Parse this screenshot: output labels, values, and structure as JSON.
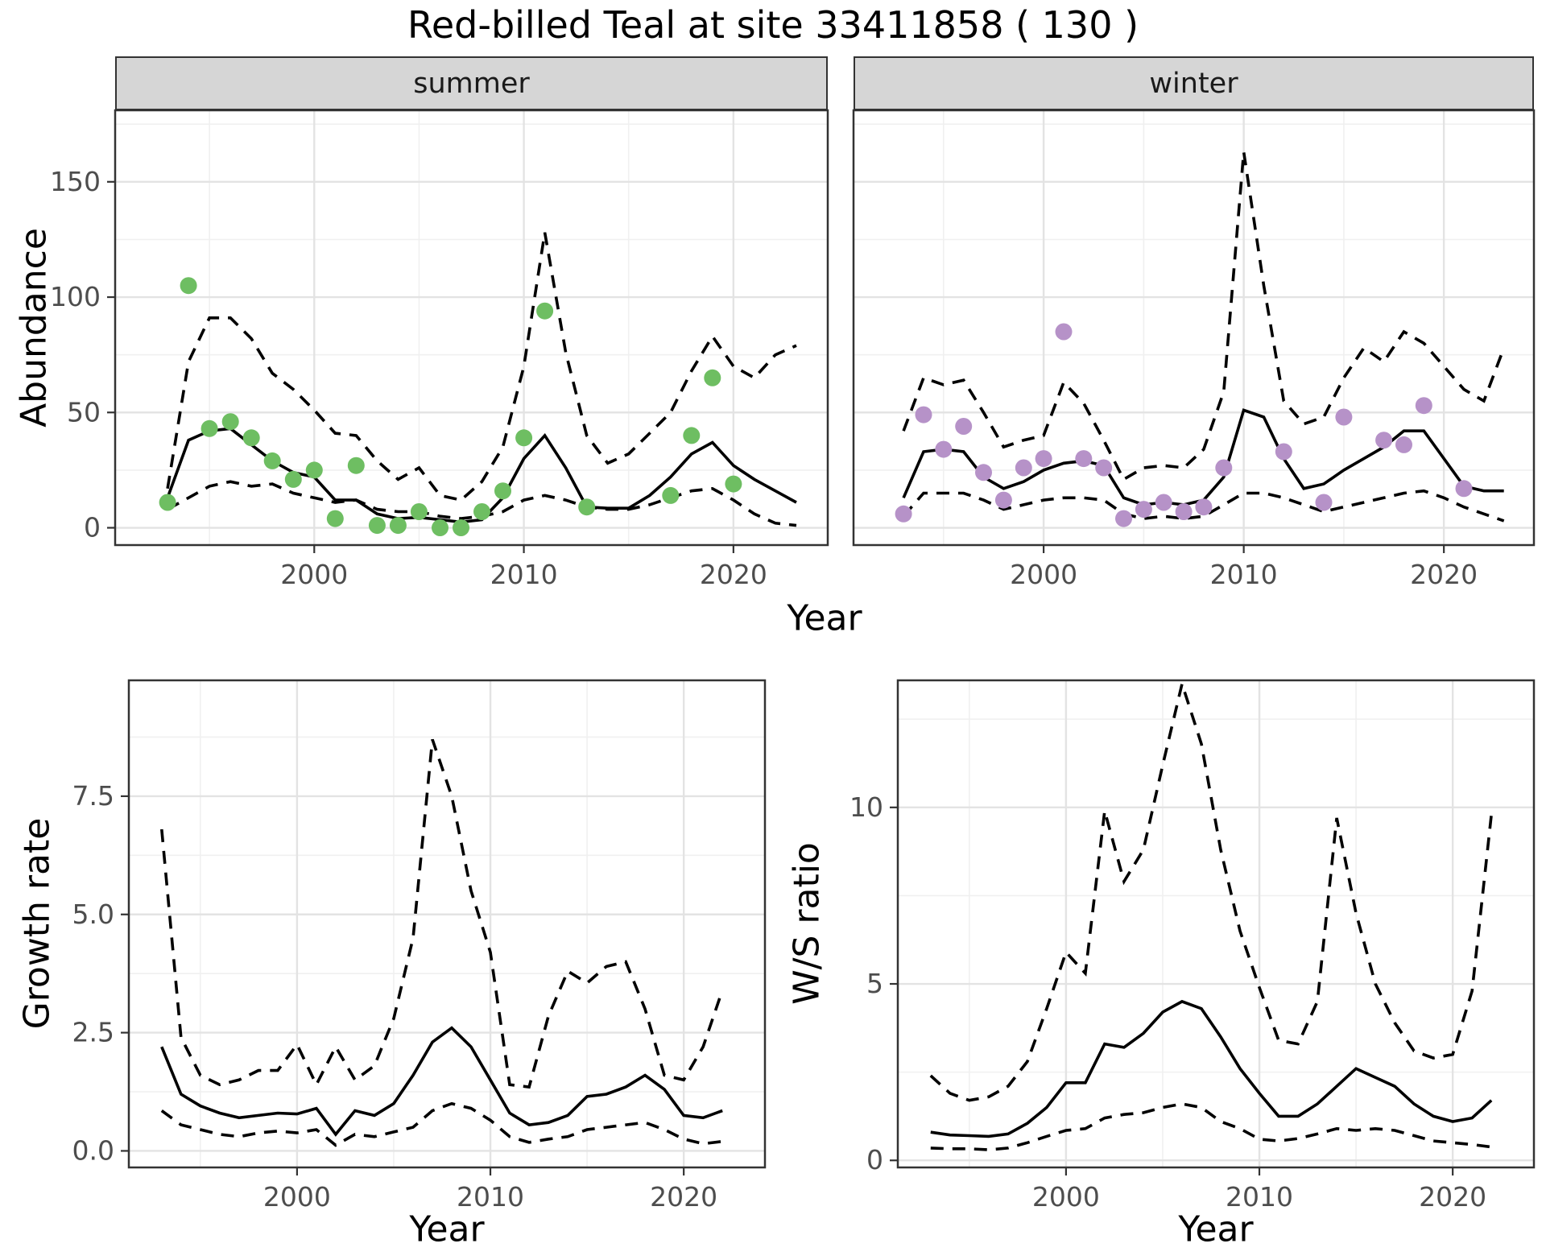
{
  "title": "Red-billed Teal at site 33411858 ( 130 )",
  "facets": {
    "summer": "summer",
    "winter": "winter"
  },
  "axis_labels": {
    "abundance": "Abundance",
    "year": "Year",
    "growth": "Growth rate",
    "ws": "W/S ratio"
  },
  "colors": {
    "summer_points": "#6ebe62",
    "winter_points": "#b692c8",
    "line": "#000000",
    "grid_major": "#e3e3e3",
    "grid_minor": "#f0f0f0",
    "strip_bg": "#d6d6d6",
    "panel_border": "#333333",
    "tick_label": "#4d4d4d"
  },
  "chart_data": [
    {
      "id": "abundance-summer",
      "type": "line",
      "facet": "summer",
      "xlabel": "Year",
      "ylabel": "Abundance",
      "xlim": [
        1990.5,
        2024.5
      ],
      "ylim": [
        -7.5,
        181
      ],
      "xticks": [
        2000,
        2010,
        2020
      ],
      "xtick_labels": [
        "2000",
        "2010",
        "2020"
      ],
      "xminor": [
        1995,
        2005,
        2015
      ],
      "yticks": [
        0,
        50,
        100,
        150
      ],
      "ytick_labels": [
        "0",
        "50",
        "100",
        "150"
      ],
      "yminor": [
        25,
        75,
        125,
        175
      ],
      "years": [
        1993,
        1994,
        1995,
        1996,
        1997,
        1998,
        1999,
        2000,
        2001,
        2002,
        2003,
        2004,
        2005,
        2006,
        2007,
        2008,
        2009,
        2010,
        2011,
        2012,
        2013,
        2014,
        2015,
        2016,
        2017,
        2018,
        2019,
        2020,
        2021,
        2022,
        2023
      ],
      "series": [
        {
          "name": "mean",
          "style": "solid",
          "values": [
            13,
            38,
            42,
            43,
            36,
            29,
            24,
            22,
            12,
            12,
            6,
            4,
            4.5,
            3.5,
            2.5,
            3.5,
            13,
            30,
            40,
            26,
            9,
            8.5,
            8.5,
            14,
            22,
            32,
            37,
            27,
            21,
            16,
            11
          ]
        },
        {
          "name": "upper_ci",
          "style": "dashed",
          "values": [
            17,
            72,
            91,
            91,
            82,
            67,
            60,
            51,
            41,
            40,
            29,
            21,
            26,
            14,
            12,
            20,
            35,
            70,
            128,
            76,
            40,
            28,
            32,
            41,
            50,
            68,
            83,
            70,
            65,
            75,
            79
          ]
        },
        {
          "name": "lower_ci",
          "style": "dashed",
          "values": [
            8,
            13,
            18,
            20,
            18,
            19,
            15,
            13,
            11,
            12,
            8,
            7,
            7,
            5,
            4,
            5,
            7,
            12,
            14,
            12,
            9,
            8,
            8,
            10,
            13,
            16,
            17,
            12,
            6,
            2,
            1
          ]
        }
      ],
      "points": {
        "name": "observed-summer",
        "color": "#6ebe62",
        "years": [
          1993,
          1994,
          1995,
          1996,
          1997,
          1998,
          1999,
          2000,
          2001,
          2002,
          2003,
          2004,
          2005,
          2006,
          2007,
          2008,
          2009,
          2010,
          2011,
          2013,
          2017,
          2018,
          2019,
          2020
        ],
        "values": [
          11,
          105,
          43,
          46,
          39,
          29,
          21,
          25,
          4,
          27,
          1,
          1,
          7,
          0,
          0,
          7,
          16,
          39,
          94,
          9,
          14,
          40,
          65,
          19
        ]
      }
    },
    {
      "id": "abundance-winter",
      "type": "line",
      "facet": "winter",
      "xlabel": "Year",
      "ylabel": "Abundance",
      "xlim": [
        1990.5,
        2024.5
      ],
      "ylim": [
        -7.5,
        181
      ],
      "xticks": [
        2000,
        2010,
        2020
      ],
      "xtick_labels": [
        "2000",
        "2010",
        "2020"
      ],
      "xminor": [
        1995,
        2005,
        2015
      ],
      "yticks": [
        0,
        50,
        100,
        150
      ],
      "ytick_labels": [
        "0",
        "50",
        "100",
        "150"
      ],
      "yminor": [
        25,
        75,
        125,
        175
      ],
      "years": [
        1993,
        1994,
        1995,
        1996,
        1997,
        1998,
        1999,
        2000,
        2001,
        2002,
        2003,
        2004,
        2005,
        2006,
        2007,
        2008,
        2009,
        2010,
        2011,
        2012,
        2013,
        2014,
        2015,
        2016,
        2017,
        2018,
        2019,
        2020,
        2021,
        2022,
        2023
      ],
      "series": [
        {
          "name": "mean",
          "style": "solid",
          "values": [
            13,
            33,
            34,
            33,
            22,
            17,
            20,
            25,
            28,
            29,
            27,
            13,
            10,
            11,
            10,
            12,
            22,
            51,
            48,
            30,
            17,
            19,
            25,
            30,
            35,
            42,
            42,
            30,
            18,
            16,
            16
          ]
        },
        {
          "name": "upper_ci",
          "style": "dashed",
          "values": [
            42,
            65,
            62,
            64,
            50,
            35,
            38,
            40,
            63,
            54,
            38,
            21,
            26,
            27,
            26,
            34,
            59,
            163,
            105,
            55,
            45,
            48,
            65,
            78,
            72,
            85,
            80,
            70,
            60,
            55,
            78
          ]
        },
        {
          "name": "lower_ci",
          "style": "dashed",
          "values": [
            5,
            15,
            15,
            15,
            12,
            8,
            10,
            12,
            13,
            13,
            12,
            6,
            4,
            5,
            4,
            5,
            10,
            15,
            15,
            13,
            10,
            7,
            9,
            11,
            13,
            15,
            16,
            13,
            9,
            6,
            3
          ]
        }
      ],
      "points": {
        "name": "observed-winter",
        "color": "#b692c8",
        "years": [
          1993,
          1994,
          1995,
          1996,
          1997,
          1998,
          1999,
          2000,
          2001,
          2002,
          2003,
          2004,
          2005,
          2006,
          2007,
          2008,
          2009,
          2012,
          2014,
          2015,
          2017,
          2018,
          2019,
          2021
        ],
        "values": [
          6,
          49,
          34,
          44,
          24,
          12,
          26,
          30,
          85,
          30,
          26,
          4,
          8,
          11,
          7,
          9,
          26,
          33,
          11,
          48,
          38,
          36,
          53,
          17
        ]
      }
    },
    {
      "id": "growth-rate",
      "type": "line",
      "xlabel": "Year",
      "ylabel": "Growth rate",
      "xlim": [
        1991.3,
        2024.2
      ],
      "ylim": [
        -0.35,
        9.95
      ],
      "xticks": [
        2000,
        2010,
        2020
      ],
      "xtick_labels": [
        "2000",
        "2010",
        "2020"
      ],
      "xminor": [
        1995,
        2005,
        2015
      ],
      "yticks": [
        0,
        2.5,
        5,
        7.5
      ],
      "ytick_labels": [
        "0.0",
        "2.5",
        "5.0",
        "7.5"
      ],
      "yminor": [
        1.25,
        3.75,
        6.25,
        8.75
      ],
      "years": [
        1993,
        1994,
        1995,
        1996,
        1997,
        1998,
        1999,
        2000,
        2001,
        2002,
        2003,
        2004,
        2005,
        2006,
        2007,
        2008,
        2009,
        2010,
        2011,
        2012,
        2013,
        2014,
        2015,
        2016,
        2017,
        2018,
        2019,
        2020,
        2021,
        2022
      ],
      "series": [
        {
          "name": "mean",
          "style": "solid",
          "values": [
            2.2,
            1.2,
            0.95,
            0.8,
            0.7,
            0.75,
            0.8,
            0.78,
            0.9,
            0.35,
            0.85,
            0.75,
            1.0,
            1.6,
            2.3,
            2.6,
            2.2,
            1.5,
            0.8,
            0.55,
            0.6,
            0.75,
            1.15,
            1.2,
            1.35,
            1.6,
            1.3,
            0.75,
            0.7,
            0.85
          ]
        },
        {
          "name": "upper_ci",
          "style": "dashed",
          "values": [
            6.8,
            2.4,
            1.6,
            1.4,
            1.5,
            1.7,
            1.7,
            2.25,
            1.4,
            2.2,
            1.5,
            1.8,
            2.8,
            4.5,
            8.7,
            7.5,
            5.5,
            4.2,
            1.4,
            1.35,
            2.85,
            3.8,
            3.55,
            3.9,
            4.0,
            3.0,
            1.6,
            1.5,
            2.2,
            3.4
          ]
        },
        {
          "name": "lower_ci",
          "style": "dashed",
          "values": [
            0.85,
            0.55,
            0.45,
            0.35,
            0.3,
            0.38,
            0.42,
            0.38,
            0.45,
            0.12,
            0.35,
            0.3,
            0.4,
            0.5,
            0.85,
            1.0,
            0.9,
            0.65,
            0.3,
            0.18,
            0.25,
            0.3,
            0.45,
            0.5,
            0.55,
            0.6,
            0.45,
            0.25,
            0.15,
            0.2
          ]
        }
      ]
    },
    {
      "id": "ws-ratio",
      "type": "line",
      "xlabel": "Year",
      "ylabel": "W/S ratio",
      "xlim": [
        1991.3,
        2024.2
      ],
      "ylim": [
        -0.2,
        13.6
      ],
      "xticks": [
        2000,
        2010,
        2020
      ],
      "xtick_labels": [
        "2000",
        "2010",
        "2020"
      ],
      "xminor": [
        1995,
        2005,
        2015
      ],
      "yticks": [
        0,
        5,
        10
      ],
      "ytick_labels": [
        "0",
        "5",
        "10"
      ],
      "yminor": [
        2.5,
        7.5,
        12.5
      ],
      "years": [
        1993,
        1994,
        1995,
        1996,
        1997,
        1998,
        1999,
        2000,
        2001,
        2002,
        2003,
        2004,
        2005,
        2006,
        2007,
        2008,
        2009,
        2010,
        2011,
        2012,
        2013,
        2014,
        2015,
        2016,
        2017,
        2018,
        2019,
        2020,
        2021,
        2022
      ],
      "series": [
        {
          "name": "mean",
          "style": "solid",
          "values": [
            0.8,
            0.72,
            0.7,
            0.68,
            0.75,
            1.05,
            1.5,
            2.2,
            2.2,
            3.3,
            3.2,
            3.6,
            4.2,
            4.5,
            4.3,
            3.5,
            2.6,
            1.9,
            1.25,
            1.25,
            1.6,
            2.1,
            2.6,
            2.35,
            2.1,
            1.6,
            1.25,
            1.1,
            1.2,
            1.7
          ]
        },
        {
          "name": "upper_ci",
          "style": "dashed",
          "values": [
            2.4,
            1.9,
            1.7,
            1.8,
            2.1,
            2.8,
            4.3,
            5.9,
            5.3,
            9.9,
            7.9,
            8.8,
            11.2,
            13.5,
            11.8,
            8.8,
            6.5,
            4.9,
            3.4,
            3.3,
            4.5,
            9.7,
            7.0,
            5.0,
            3.9,
            3.1,
            2.9,
            3.0,
            4.8,
            9.8
          ]
        },
        {
          "name": "lower_ci",
          "style": "dashed",
          "values": [
            0.35,
            0.33,
            0.33,
            0.3,
            0.35,
            0.5,
            0.68,
            0.85,
            0.9,
            1.2,
            1.3,
            1.35,
            1.5,
            1.6,
            1.5,
            1.1,
            0.9,
            0.6,
            0.55,
            0.62,
            0.75,
            0.9,
            0.85,
            0.9,
            0.85,
            0.7,
            0.55,
            0.5,
            0.45,
            0.38
          ]
        }
      ]
    }
  ]
}
